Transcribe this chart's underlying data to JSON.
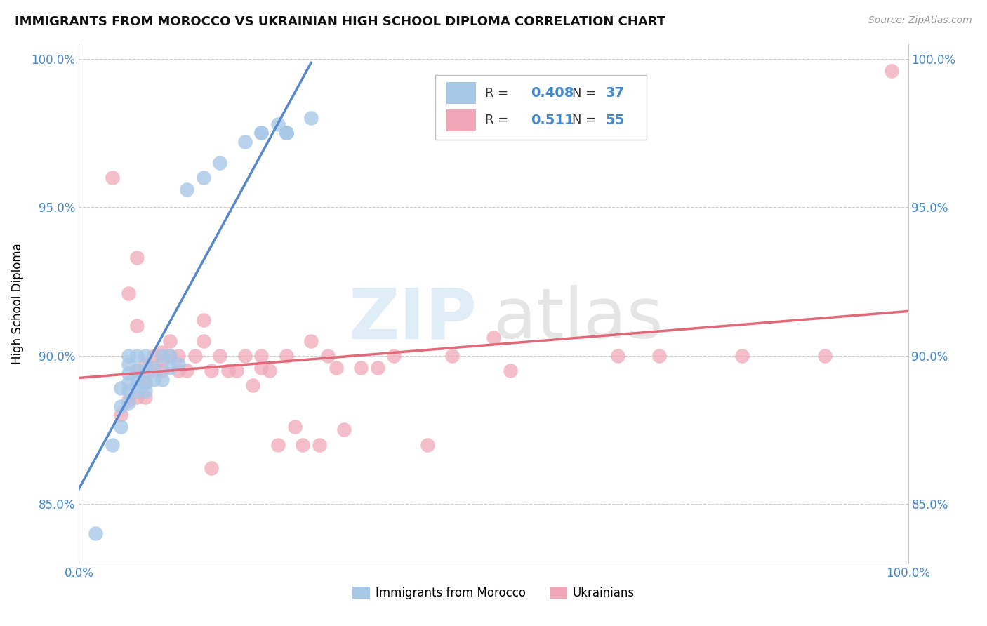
{
  "title": "IMMIGRANTS FROM MOROCCO VS UKRAINIAN HIGH SCHOOL DIPLOMA CORRELATION CHART",
  "source_text": "Source: ZipAtlas.com",
  "ylabel": "High School Diploma",
  "xlim": [
    0.0,
    1.0
  ],
  "ylim": [
    0.83,
    1.005
  ],
  "y_ticks": [
    0.85,
    0.9,
    0.95,
    1.0
  ],
  "y_tick_labels": [
    "85.0%",
    "90.0%",
    "95.0%",
    "100.0%"
  ],
  "x_ticks": [
    0.0,
    0.25,
    0.5,
    0.75,
    1.0
  ],
  "x_tick_labels": [
    "0.0%",
    "",
    "",
    "",
    "100.0%"
  ],
  "legend_R_blue": "0.408",
  "legend_N_blue": "37",
  "legend_R_pink": "0.511",
  "legend_N_pink": "55",
  "blue_dot_color": "#a8c8e8",
  "pink_dot_color": "#f0a8b8",
  "blue_line_color": "#5588cc",
  "pink_line_color": "#e06878",
  "tick_color": "#4488cc",
  "grid_color": "#cccccc",
  "blue_scatter_x": [
    0.02,
    0.04,
    0.05,
    0.05,
    0.05,
    0.06,
    0.06,
    0.06,
    0.06,
    0.06,
    0.06,
    0.07,
    0.07,
    0.07,
    0.07,
    0.08,
    0.08,
    0.08,
    0.08,
    0.09,
    0.09,
    0.1,
    0.1,
    0.11,
    0.11,
    0.12,
    0.13,
    0.15,
    0.17,
    0.2,
    0.22,
    0.22,
    0.24,
    0.25,
    0.25,
    0.25,
    0.28
  ],
  "blue_scatter_y": [
    0.84,
    0.87,
    0.876,
    0.883,
    0.889,
    0.884,
    0.888,
    0.891,
    0.894,
    0.897,
    0.9,
    0.888,
    0.891,
    0.895,
    0.9,
    0.888,
    0.891,
    0.895,
    0.9,
    0.892,
    0.896,
    0.892,
    0.9,
    0.896,
    0.9,
    0.897,
    0.956,
    0.96,
    0.965,
    0.972,
    0.975,
    0.975,
    0.978,
    0.975,
    0.975,
    0.975,
    0.98
  ],
  "pink_scatter_x": [
    0.04,
    0.05,
    0.06,
    0.06,
    0.07,
    0.07,
    0.07,
    0.07,
    0.08,
    0.08,
    0.08,
    0.09,
    0.09,
    0.1,
    0.1,
    0.1,
    0.11,
    0.11,
    0.12,
    0.12,
    0.13,
    0.14,
    0.15,
    0.15,
    0.16,
    0.16,
    0.17,
    0.18,
    0.19,
    0.2,
    0.21,
    0.22,
    0.22,
    0.23,
    0.24,
    0.25,
    0.26,
    0.27,
    0.28,
    0.29,
    0.3,
    0.31,
    0.32,
    0.34,
    0.36,
    0.38,
    0.42,
    0.45,
    0.5,
    0.52,
    0.65,
    0.7,
    0.8,
    0.9,
    0.98
  ],
  "pink_scatter_y": [
    0.96,
    0.88,
    0.885,
    0.921,
    0.886,
    0.895,
    0.91,
    0.933,
    0.886,
    0.891,
    0.897,
    0.895,
    0.9,
    0.895,
    0.898,
    0.901,
    0.9,
    0.905,
    0.895,
    0.9,
    0.895,
    0.9,
    0.905,
    0.912,
    0.895,
    0.862,
    0.9,
    0.895,
    0.895,
    0.9,
    0.89,
    0.896,
    0.9,
    0.895,
    0.87,
    0.9,
    0.876,
    0.87,
    0.905,
    0.87,
    0.9,
    0.896,
    0.875,
    0.896,
    0.896,
    0.9,
    0.87,
    0.9,
    0.906,
    0.895,
    0.9,
    0.9,
    0.9,
    0.9,
    0.996
  ]
}
